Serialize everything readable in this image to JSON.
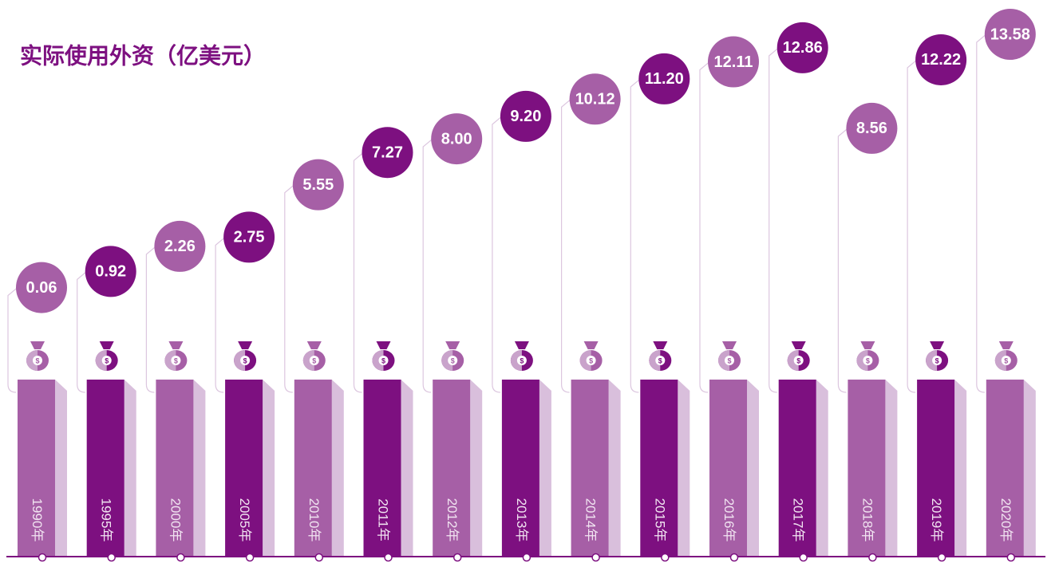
{
  "chart_data": {
    "type": "bubble-bar",
    "title": "实际使用外资（亿美元）",
    "categories": [
      "1990年",
      "1995年",
      "2000年",
      "2005年",
      "2010年",
      "2011年",
      "2012年",
      "2013年",
      "2014年",
      "2015年",
      "2016年",
      "2017年",
      "2018年",
      "2019年",
      "2020年"
    ],
    "values": [
      0.06,
      0.92,
      2.26,
      2.75,
      5.55,
      7.27,
      8,
      9.2,
      10.12,
      11.2,
      12.11,
      12.86,
      8.56,
      12.22,
      13.58
    ],
    "value_labels": [
      "0.06",
      "0.92",
      "2.26",
      "2.75",
      "5.55",
      "7.27",
      "8.00",
      "9.20",
      "10.12",
      "11.20",
      "12.11",
      "12.86",
      "8.56",
      "12.22",
      "13.58"
    ],
    "colors": [
      "#a65fa6",
      "#7d1080",
      "#a65fa6",
      "#7d1080",
      "#a65fa6",
      "#7d1080",
      "#a65fa6",
      "#7d1080",
      "#a65fa6",
      "#7d1080",
      "#a65fa6",
      "#7d1080",
      "#a65fa6",
      "#7d1080",
      "#a65fa6"
    ]
  }
}
